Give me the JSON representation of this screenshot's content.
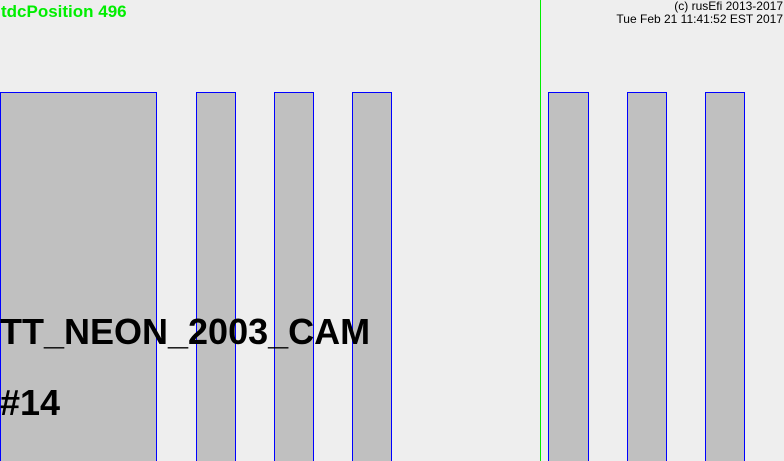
{
  "tdc_label": "tdcPosition 496",
  "copyright_line1": "(c) rusEfi 2013-2017",
  "copyright_line2": "Tue Feb 21 11:41:52 EST 2017",
  "trigger_name": "TT_NEON_2003_CAM",
  "trigger_index": "#14",
  "colors": {
    "background": "#eeeeee",
    "tooth_fill": "#c0c0c0",
    "tooth_outline": "#0000ff",
    "tdc_marker": "#00ee00",
    "text": "#000000"
  }
}
